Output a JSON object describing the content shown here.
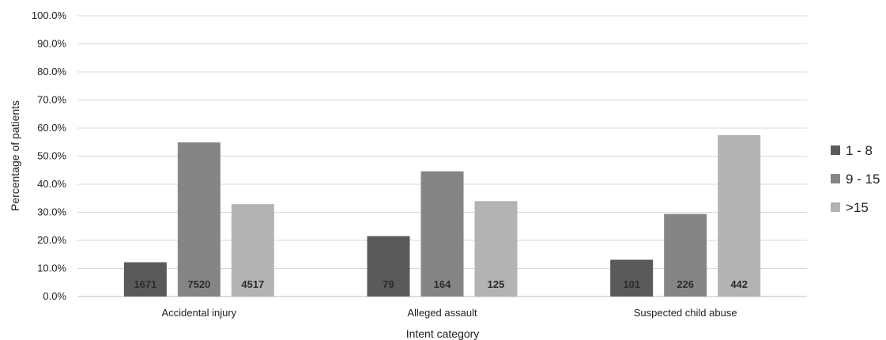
{
  "chart_data": {
    "type": "bar",
    "title": "",
    "xlabel": "Intent category",
    "ylabel": "Percentage of patients",
    "ylim": [
      0,
      100
    ],
    "yticks": [
      "0.0%",
      "10.0%",
      "20.0%",
      "30.0%",
      "40.0%",
      "50.0%",
      "60.0%",
      "70.0%",
      "80.0%",
      "90.0%",
      "100.0%"
    ],
    "grid": true,
    "legend_position": "right",
    "categories": [
      "Accidental injury",
      "Alleged assault",
      "Suspected child abuse"
    ],
    "series": [
      {
        "name": "1 - 8",
        "color": "#5a5a5a",
        "values": [
          12.2,
          21.5,
          13.1
        ],
        "labels": [
          "1671",
          "79",
          "101"
        ]
      },
      {
        "name": "9 - 15",
        "color": "#858585",
        "values": [
          54.9,
          44.6,
          29.4
        ],
        "labels": [
          "7520",
          "164",
          "226"
        ]
      },
      {
        "name": ">15",
        "color": "#b3b3b3",
        "values": [
          32.9,
          34.0,
          57.5
        ],
        "labels": [
          "4517",
          "125",
          "442"
        ]
      }
    ]
  }
}
